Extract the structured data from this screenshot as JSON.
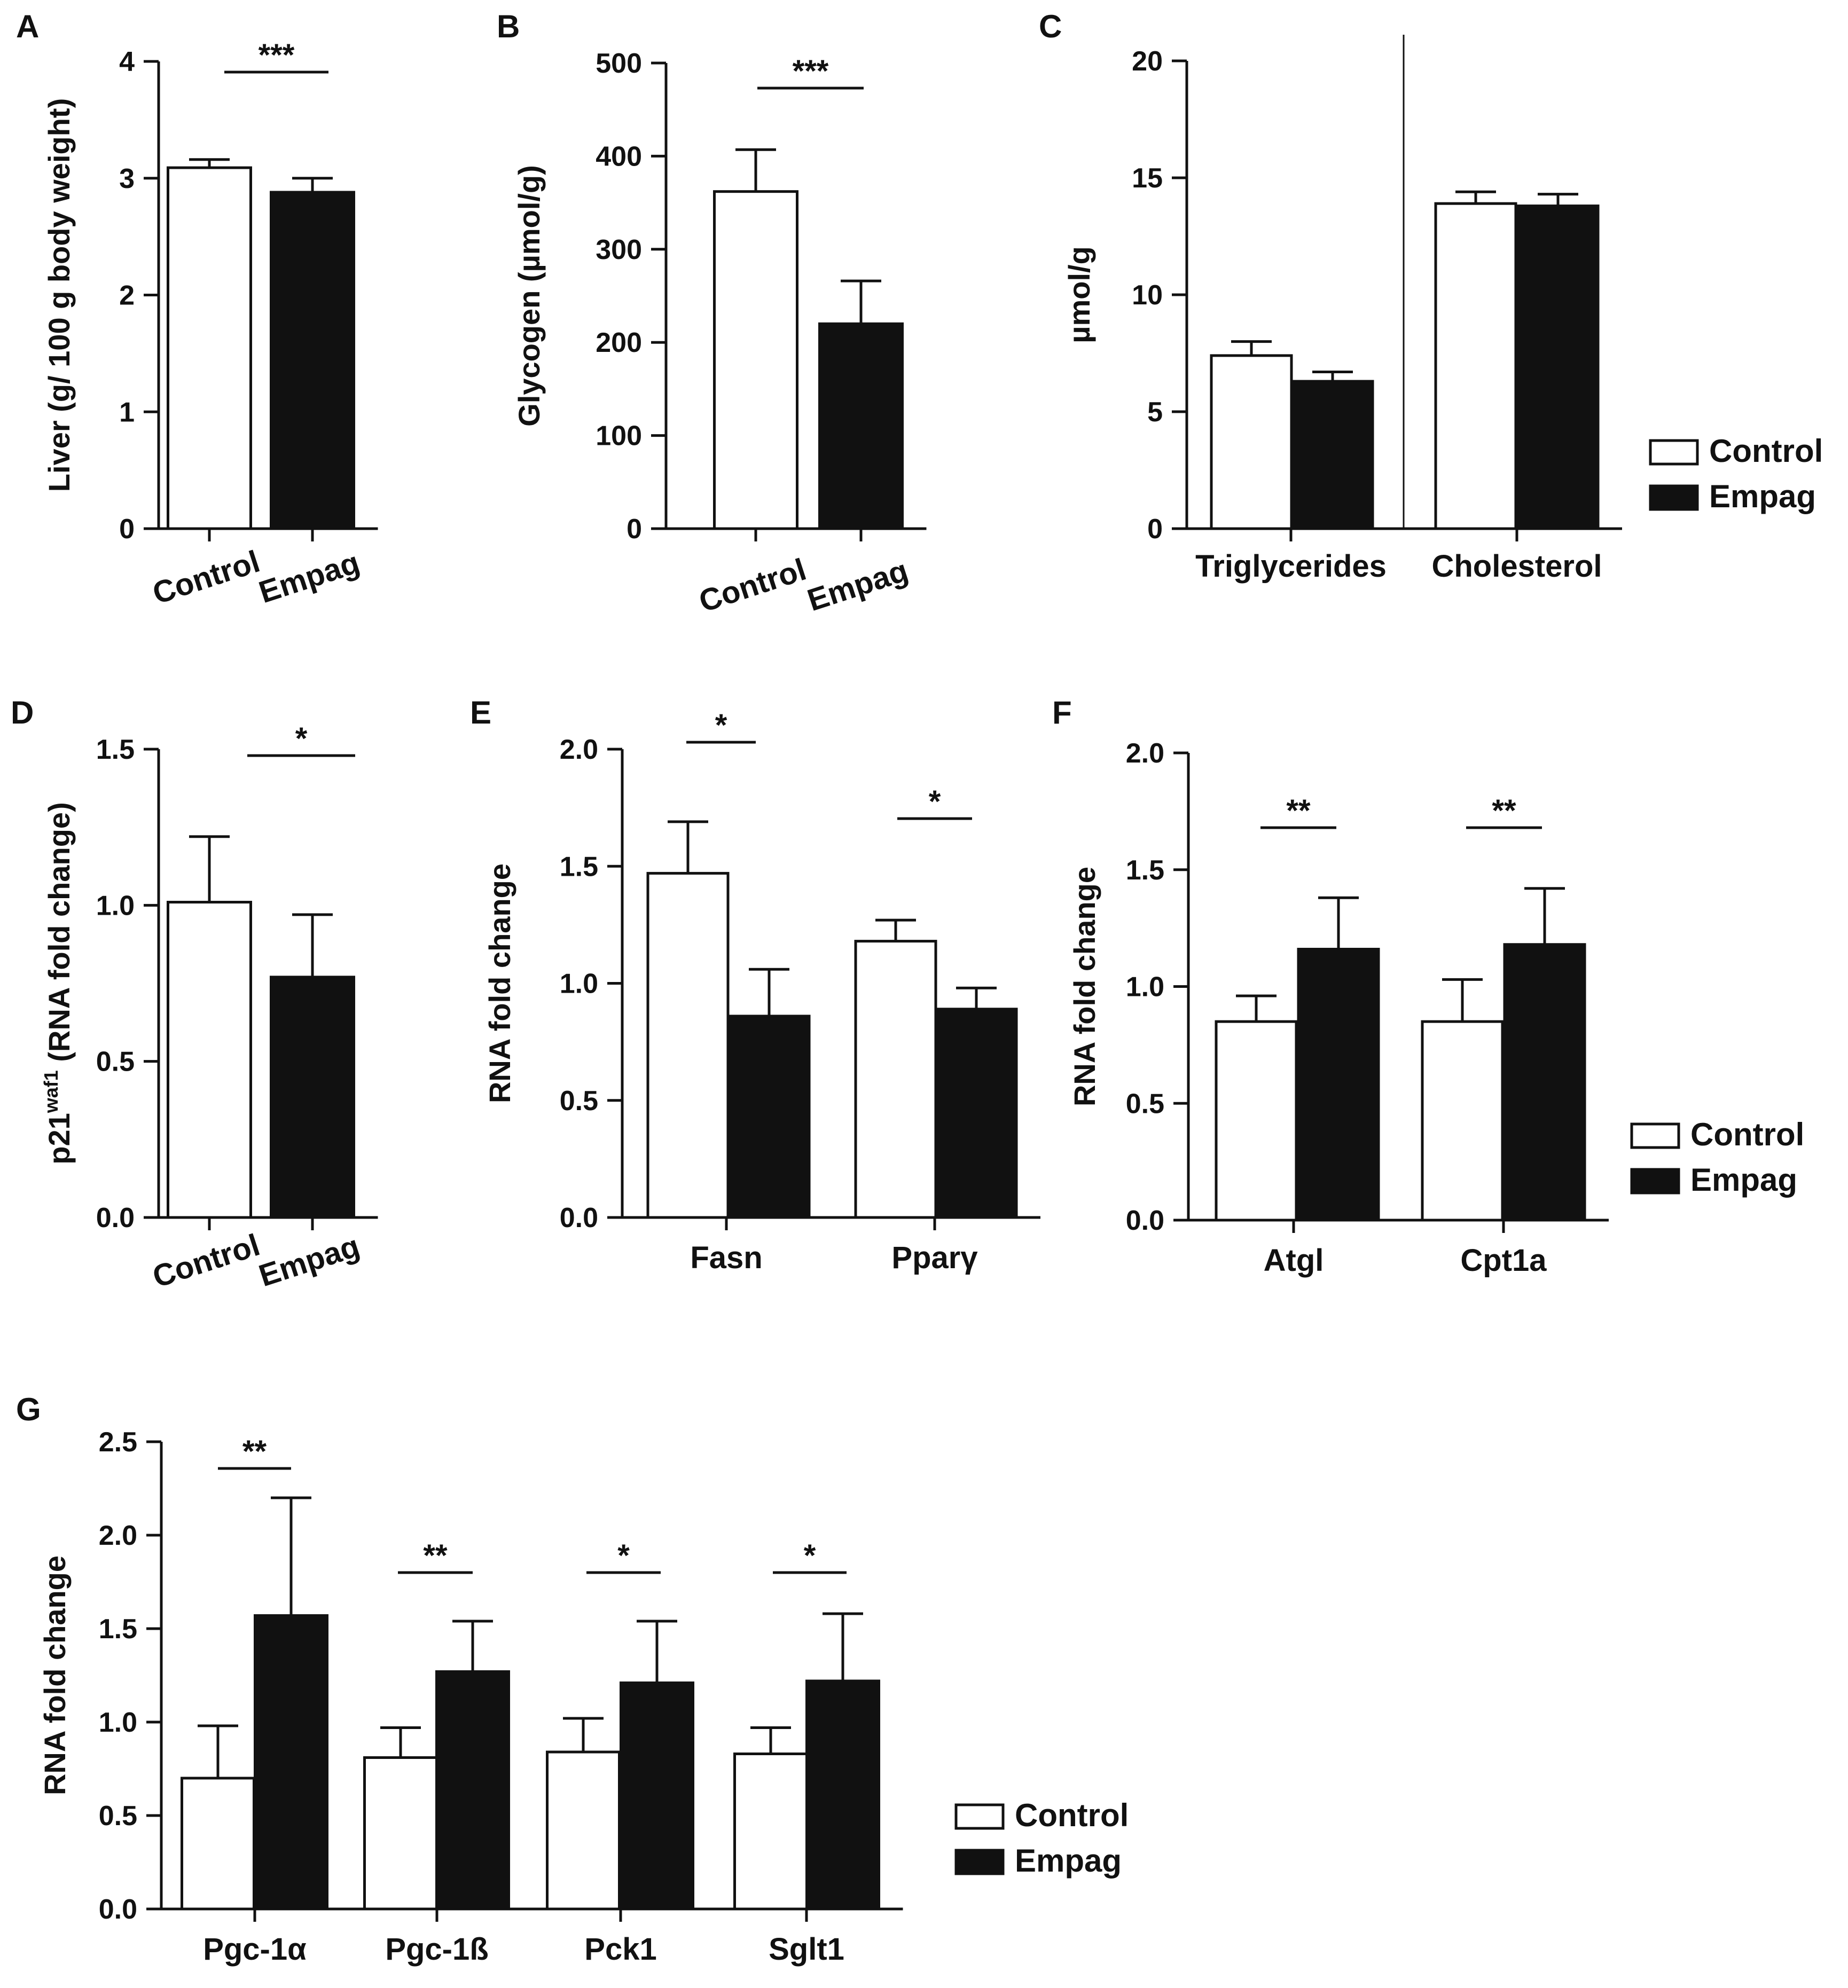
{
  "colors": {
    "control": "#ffffff",
    "empag": "#111111",
    "stroke": "#111111"
  },
  "legend": {
    "control": "Control",
    "empag": "Empag"
  },
  "chart_data": [
    {
      "panel": "A",
      "type": "bar",
      "ylabel": "Liver  (g/ 100 g body weight)",
      "ylim": [
        0,
        4
      ],
      "yticks": [
        "0",
        "1",
        "2",
        "3",
        "4"
      ],
      "categories": [
        "Control",
        "Empag"
      ],
      "values": [
        3.09,
        2.88
      ],
      "errors": [
        0.07,
        0.12
      ],
      "significance": [
        {
          "label": "***"
        }
      ]
    },
    {
      "panel": "B",
      "type": "bar",
      "ylabel": "Glycogen (µmol/g)",
      "ylim": [
        0,
        500
      ],
      "yticks": [
        "0",
        "100",
        "200",
        "300",
        "400",
        "500"
      ],
      "categories": [
        "Control",
        "Empag"
      ],
      "values": [
        362,
        220
      ],
      "errors": [
        45,
        46
      ],
      "significance": [
        {
          "label": "***"
        }
      ]
    },
    {
      "panel": "C",
      "type": "bar",
      "ylabel": "µmol/g",
      "ylim": [
        0,
        20
      ],
      "yticks": [
        "0",
        "5",
        "10",
        "15",
        "20"
      ],
      "categories": [
        "Triglycerides",
        "Cholesterol"
      ],
      "series": [
        {
          "name": "Control",
          "values": [
            7.4,
            13.9
          ],
          "errors": [
            0.6,
            0.5
          ]
        },
        {
          "name": "Empag",
          "values": [
            6.3,
            13.8
          ],
          "errors": [
            0.4,
            0.5
          ]
        }
      ],
      "legend": [
        "Control",
        "Empag"
      ]
    },
    {
      "panel": "D",
      "type": "bar",
      "ylabel": "p21waf1 (RNA fold change)",
      "ylabel_parts": {
        "base": "p21",
        "sup": "waf1",
        "rest": " (RNA fold change)"
      },
      "ylim": [
        0,
        1.5
      ],
      "yticks": [
        "0.0",
        "0.5",
        "1.0",
        "1.5"
      ],
      "categories": [
        "Control",
        "Empag"
      ],
      "values": [
        1.01,
        0.77
      ],
      "errors": [
        0.21,
        0.2
      ],
      "significance": [
        {
          "label": "*"
        }
      ]
    },
    {
      "panel": "E",
      "type": "bar",
      "ylabel": "RNA fold change",
      "ylim": [
        0,
        2
      ],
      "yticks": [
        "0.0",
        "0.5",
        "1.0",
        "1.5",
        "2.0"
      ],
      "categories": [
        "Fasn",
        "Pparγ"
      ],
      "series": [
        {
          "name": "Control",
          "values": [
            1.47,
            1.18
          ],
          "errors": [
            0.22,
            0.09
          ]
        },
        {
          "name": "Empag",
          "values": [
            0.86,
            0.89
          ],
          "errors": [
            0.2,
            0.09
          ]
        }
      ],
      "significance": [
        {
          "category": 0,
          "label": "*"
        },
        {
          "category": 1,
          "label": "*"
        }
      ]
    },
    {
      "panel": "F",
      "type": "bar",
      "ylabel": "RNA fold change",
      "ylim": [
        0,
        2
      ],
      "yticks": [
        "0.0",
        "0.5",
        "1.0",
        "1.5",
        "2.0"
      ],
      "categories": [
        "Atgl",
        "Cpt1a"
      ],
      "series": [
        {
          "name": "Control",
          "values": [
            0.85,
            0.85
          ],
          "errors": [
            0.11,
            0.18
          ]
        },
        {
          "name": "Empag",
          "values": [
            1.16,
            1.18
          ],
          "errors": [
            0.22,
            0.24
          ]
        }
      ],
      "significance": [
        {
          "category": 0,
          "label": "**"
        },
        {
          "category": 1,
          "label": "**"
        }
      ],
      "legend": [
        "Control",
        "Empag"
      ]
    },
    {
      "panel": "G",
      "type": "bar",
      "ylabel": "RNA fold change",
      "ylim": [
        0,
        2.5
      ],
      "yticks": [
        "0.0",
        "0.5",
        "1.0",
        "1.5",
        "2.0",
        "2.5"
      ],
      "categories": [
        "Pgc-1α",
        "Pgc-1ß",
        "Pck1",
        "Sglt1"
      ],
      "series": [
        {
          "name": "Control",
          "values": [
            0.7,
            0.81,
            0.84,
            0.83
          ],
          "errors": [
            0.28,
            0.16,
            0.18,
            0.14
          ]
        },
        {
          "name": "Empag",
          "values": [
            1.57,
            1.27,
            1.21,
            1.22
          ],
          "errors": [
            0.63,
            0.27,
            0.33,
            0.36
          ]
        }
      ],
      "significance": [
        {
          "category": 0,
          "label": "**"
        },
        {
          "category": 1,
          "label": "**"
        },
        {
          "category": 2,
          "label": "*"
        },
        {
          "category": 3,
          "label": "*"
        }
      ],
      "legend": [
        "Control",
        "Empag"
      ]
    }
  ]
}
